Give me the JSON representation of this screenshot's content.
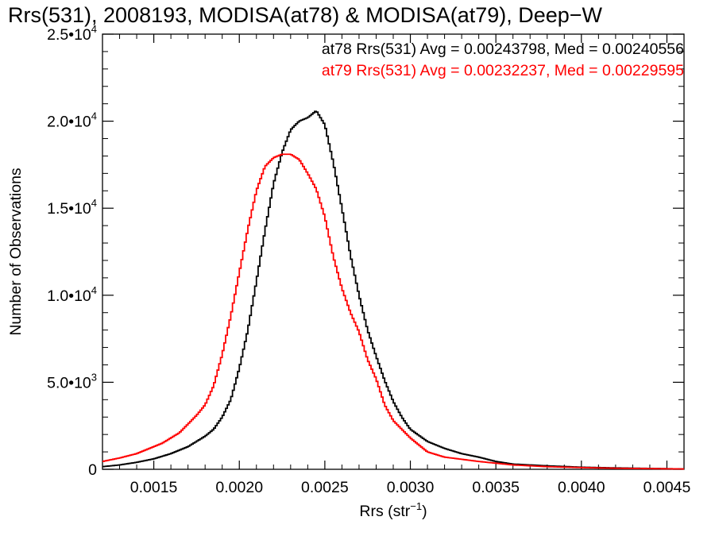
{
  "chart_data": {
    "type": "line",
    "title": "Rrs(531), 2008193, MODISA(at78) & MODISA(at79), Deep−W",
    "xlabel": "Rrs (str",
    "xlabel_sup": "−1",
    "xlabel_close": ")",
    "ylabel": "Number of Observations",
    "xlim": [
      0.0012,
      0.0046
    ],
    "ylim": [
      0,
      25000
    ],
    "x_ticks": [
      0.0015,
      0.002,
      0.0025,
      0.003,
      0.0035,
      0.004,
      0.0045
    ],
    "x_tick_labels": [
      "0.0015",
      "0.0020",
      "0.0025",
      "0.0030",
      "0.0035",
      "0.0040",
      "0.0045"
    ],
    "y_ticks": [
      0,
      5000,
      10000,
      15000,
      20000,
      25000
    ],
    "y_tick_labels": [
      {
        "base": "0",
        "exp": ""
      },
      {
        "base": "5.0•10",
        "exp": "3"
      },
      {
        "base": "1.0•10",
        "exp": "4"
      },
      {
        "base": "1.5•10",
        "exp": "4"
      },
      {
        "base": "2.0•10",
        "exp": "4"
      },
      {
        "base": "2.5•10",
        "exp": "4"
      }
    ],
    "grid": false,
    "series": [
      {
        "name": "at78",
        "color": "#000000",
        "annotation": "at78 Rrs(531) Avg = 0.00243798, Med = 0.00240556",
        "x": [
          0.0012,
          0.0013,
          0.0014,
          0.0015,
          0.0016,
          0.0017,
          0.00175,
          0.0018,
          0.00185,
          0.0019,
          0.00195,
          0.002,
          0.00205,
          0.0021,
          0.00215,
          0.0022,
          0.00225,
          0.0023,
          0.00235,
          0.0024,
          0.00245,
          0.0025,
          0.00255,
          0.0026,
          0.00265,
          0.0027,
          0.00275,
          0.0028,
          0.00285,
          0.0029,
          0.00295,
          0.003,
          0.0031,
          0.0032,
          0.0033,
          0.0034,
          0.0035,
          0.0036,
          0.0038,
          0.004,
          0.0042,
          0.0044,
          0.0046
        ],
        "y": [
          150,
          250,
          400,
          600,
          900,
          1300,
          1600,
          1900,
          2300,
          3000,
          4000,
          5800,
          8000,
          10800,
          13700,
          16400,
          18200,
          19500,
          20000,
          20200,
          20600,
          19800,
          17600,
          15000,
          12300,
          10000,
          8000,
          6500,
          5100,
          3900,
          3000,
          2300,
          1600,
          1200,
          900,
          700,
          450,
          300,
          200,
          120,
          80,
          50,
          20
        ]
      },
      {
        "name": "at79",
        "color": "#ff0000",
        "annotation": "at79 Rrs(531) Avg = 0.00232237, Med = 0.00229595",
        "x": [
          0.0012,
          0.0013,
          0.0014,
          0.0015,
          0.00155,
          0.0016,
          0.00165,
          0.0017,
          0.00175,
          0.0018,
          0.00185,
          0.0019,
          0.00195,
          0.002,
          0.00205,
          0.0021,
          0.00215,
          0.0022,
          0.00225,
          0.0023,
          0.00235,
          0.0024,
          0.00245,
          0.0025,
          0.00255,
          0.0026,
          0.00265,
          0.0027,
          0.00275,
          0.0028,
          0.00285,
          0.0029,
          0.003,
          0.0031,
          0.0032,
          0.0034,
          0.0036,
          0.0038,
          0.004,
          0.0042,
          0.0044,
          0.0046
        ],
        "y": [
          450,
          650,
          900,
          1300,
          1500,
          1800,
          2100,
          2600,
          3100,
          3700,
          4800,
          6600,
          8800,
          11300,
          13800,
          16000,
          17400,
          17900,
          18100,
          18100,
          17800,
          17000,
          16100,
          14500,
          12200,
          10400,
          9000,
          7900,
          6300,
          5200,
          3700,
          2800,
          1800,
          1000,
          700,
          450,
          250,
          150,
          100,
          60,
          40,
          20
        ]
      }
    ]
  }
}
